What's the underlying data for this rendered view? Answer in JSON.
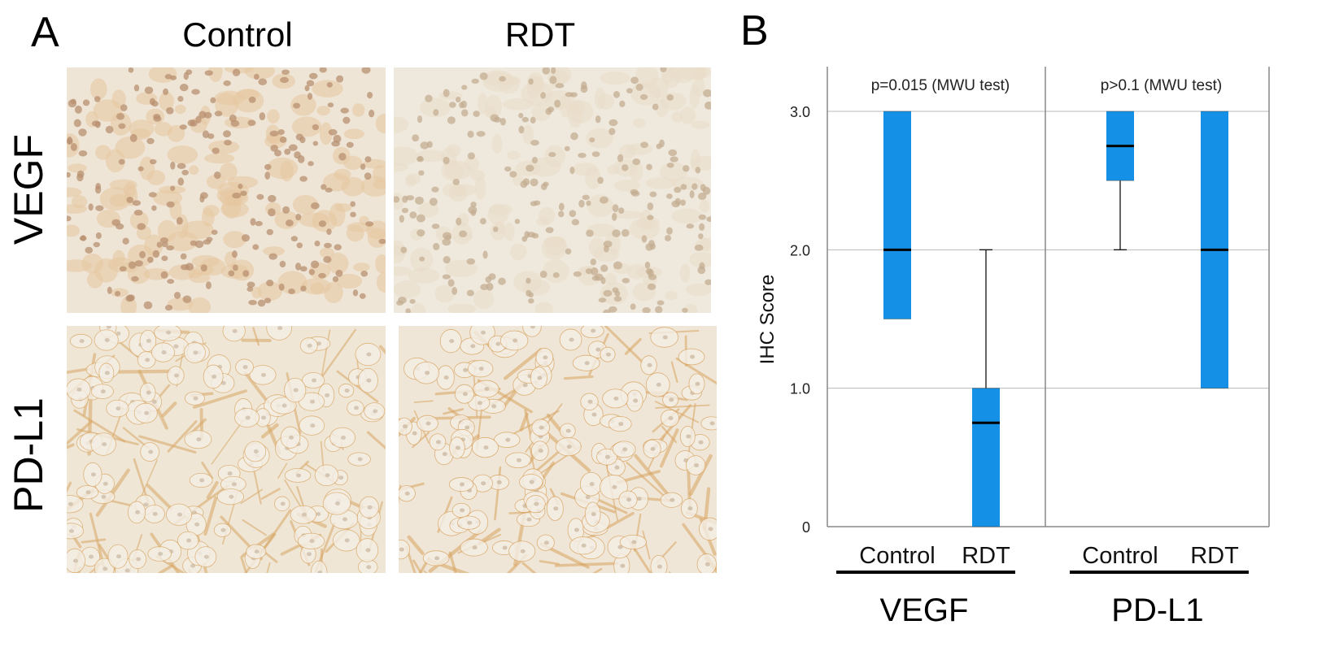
{
  "panel_a": {
    "letter": "A",
    "column_headers": [
      "Control",
      "RDT"
    ],
    "row_labels": [
      "VEGF",
      "PD-L1"
    ],
    "images": [
      {
        "row": "VEGF",
        "column": "Control",
        "stain": "#e6c7a0",
        "nuclei": "#b89070",
        "bg": "#efe5d6"
      },
      {
        "row": "VEGF",
        "column": "RDT",
        "stain": "#e9dcc8",
        "nuclei": "#c4ad92",
        "bg": "#efe8dc"
      },
      {
        "row": "PD-L1",
        "column": "Control",
        "stain": "#d9a866",
        "nuclei": "#c9b8a2",
        "bg": "#efe6d6"
      },
      {
        "row": "PD-L1",
        "column": "RDT",
        "stain": "#d8a360",
        "nuclei": "#c6b39b",
        "bg": "#efe6d7"
      }
    ]
  },
  "panel_b": {
    "letter": "B",
    "chart_data": {
      "type": "box",
      "ylabel": "IHC Score",
      "ylim": [
        0,
        3.3
      ],
      "yticks": [
        0,
        1.0,
        2.0,
        3.0
      ],
      "ytick_labels": [
        "0",
        "1.0",
        "2.0",
        "3.0"
      ],
      "grid": true,
      "box_color": "#1490e6",
      "median_color": "#000000",
      "groups": [
        {
          "name": "VEGF",
          "annotation": "p=0.015 (MWU test)",
          "boxes": [
            {
              "category": "Control",
              "q1": 1.5,
              "median": 2.0,
              "q3": 3.0,
              "whisker_low": 1.5,
              "whisker_high": 3.0
            },
            {
              "category": "RDT",
              "q1": 0,
              "median": 0.75,
              "q3": 1.0,
              "whisker_low": 0,
              "whisker_high": 2.0
            }
          ]
        },
        {
          "name": "PD-L1",
          "annotation": "p>0.1 (MWU test)",
          "boxes": [
            {
              "category": "Control",
              "q1": 2.5,
              "median": 2.75,
              "q3": 3.0,
              "whisker_low": 2.0,
              "whisker_high": 3.0
            },
            {
              "category": "RDT",
              "q1": 1.0,
              "median": 2.0,
              "q3": 3.0,
              "whisker_low": 1.0,
              "whisker_high": 3.0
            }
          ]
        }
      ]
    }
  }
}
